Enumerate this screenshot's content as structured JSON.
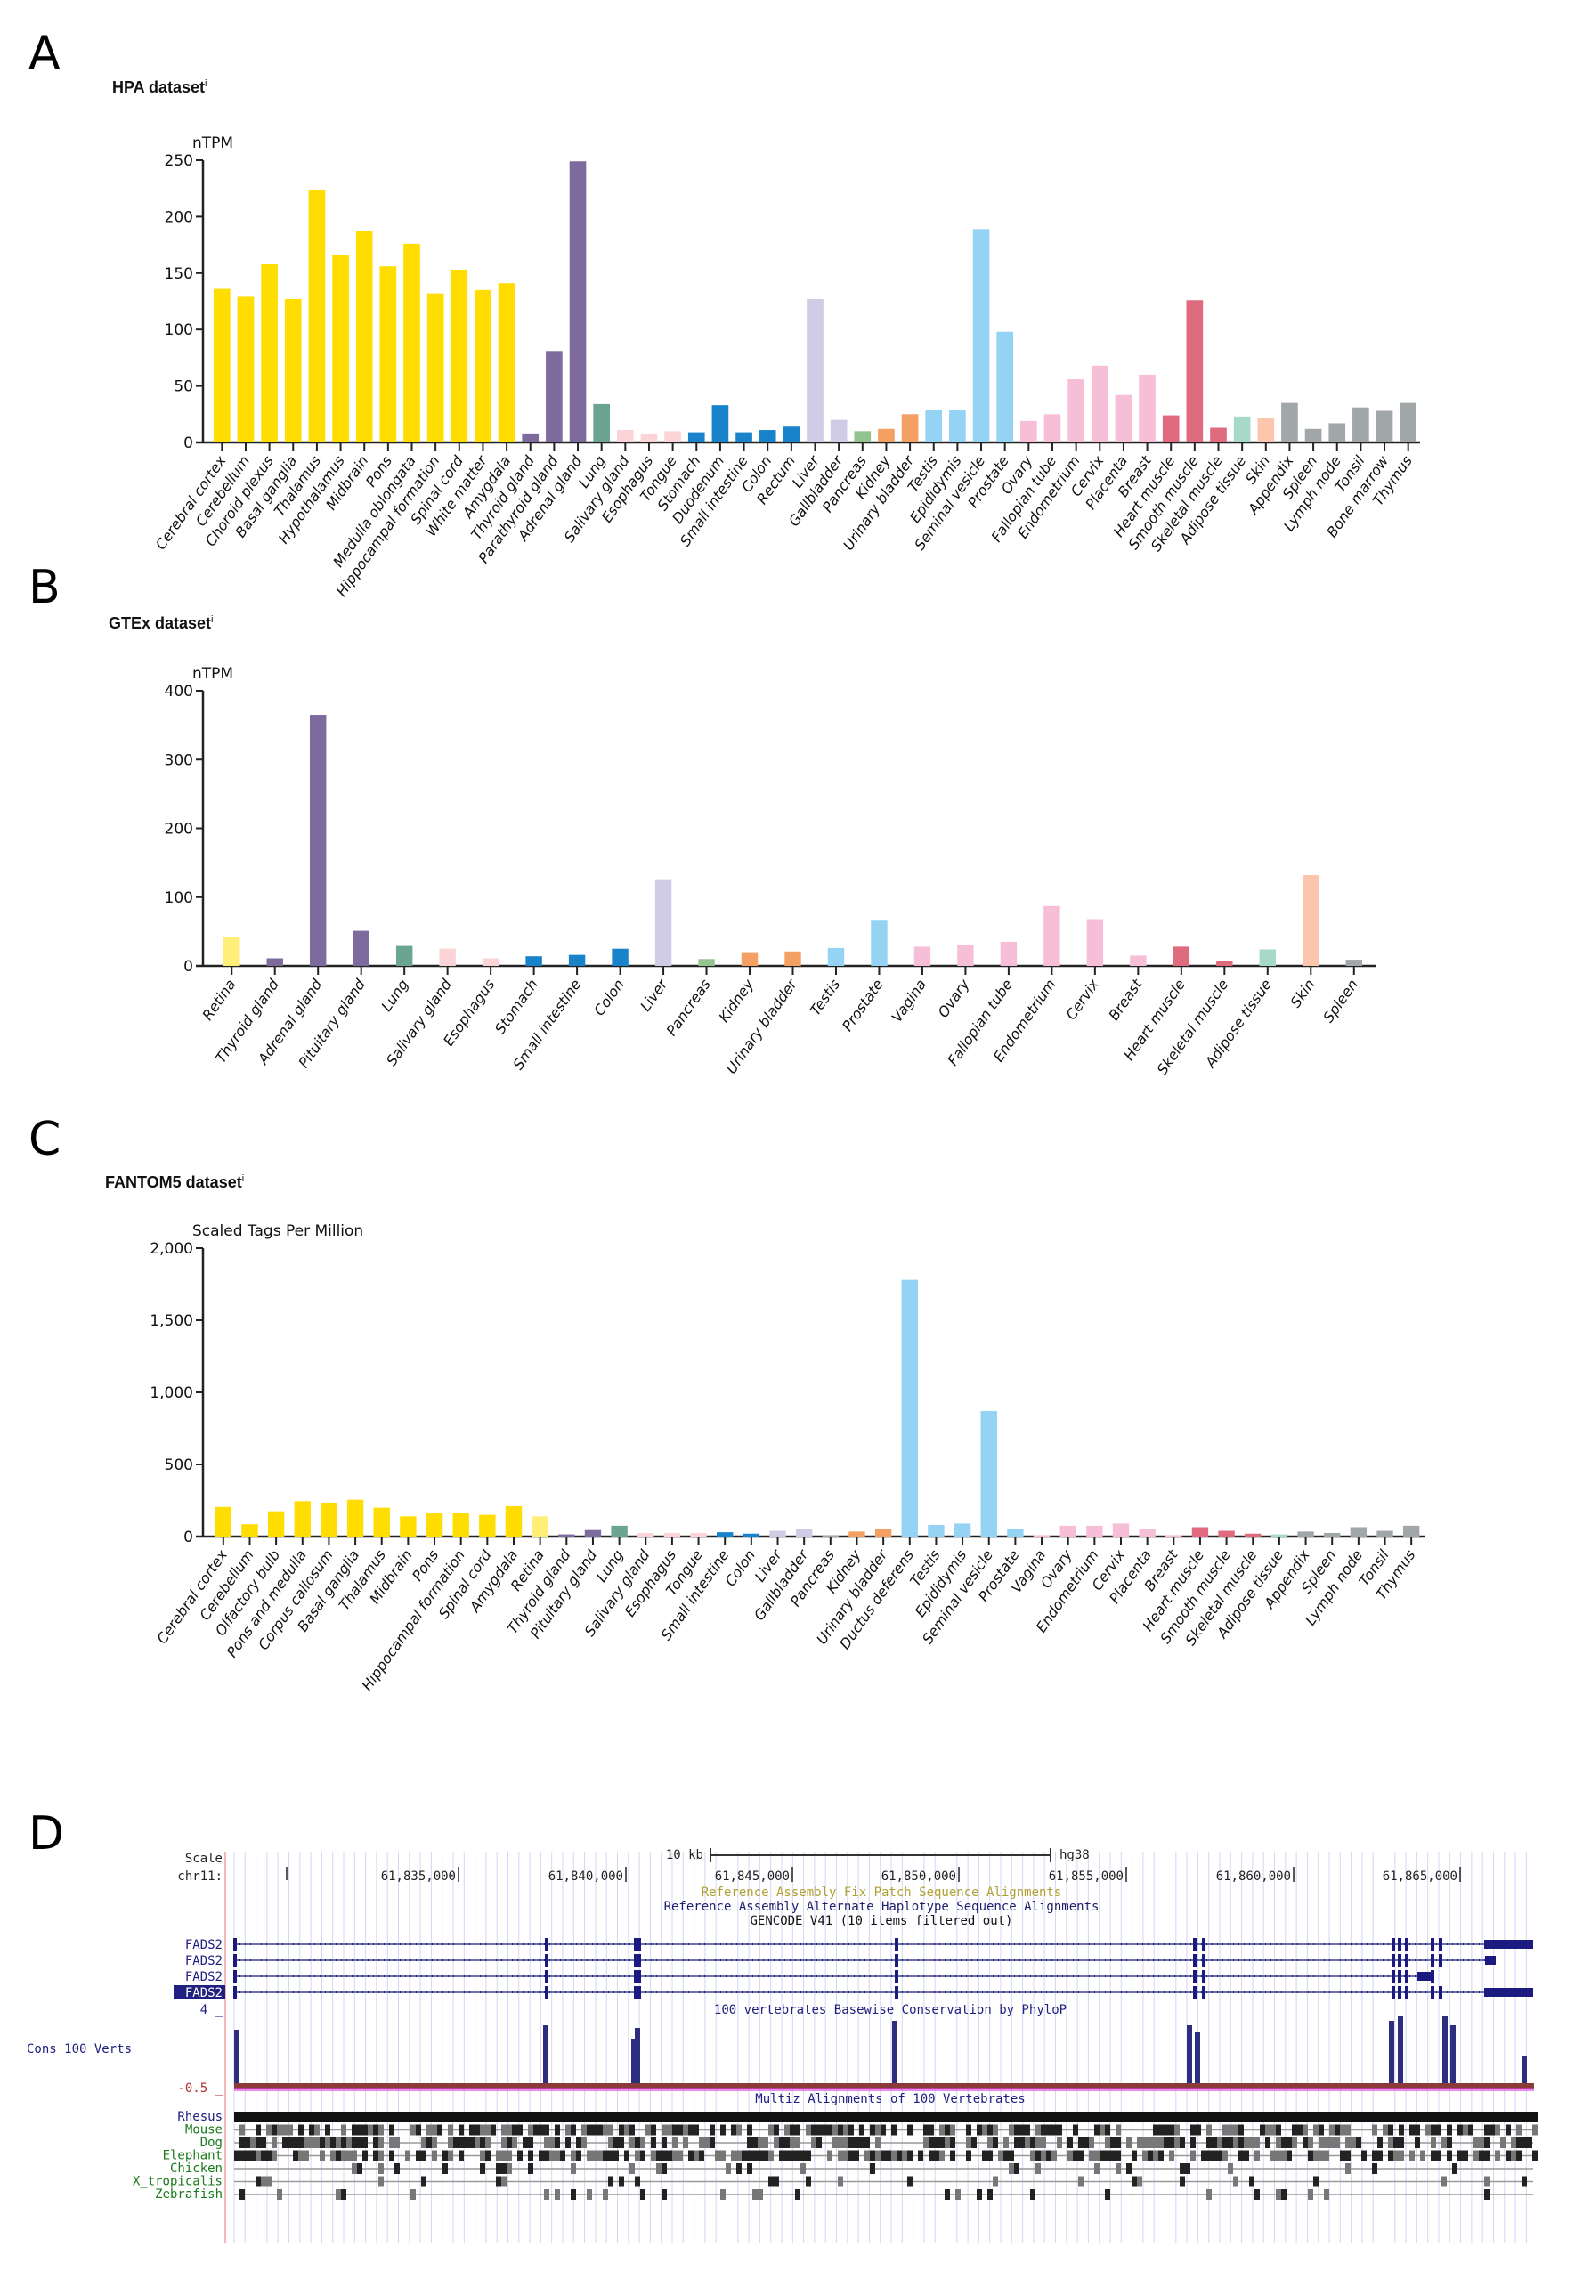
{
  "panels": {
    "A": "A",
    "B": "B",
    "C": "C",
    "D": "D"
  },
  "colors": {
    "brain": "#FFDD00",
    "retina": "#FFEE77",
    "endocrine": "#7E6B9E",
    "lung": "#6BA592",
    "gi_proximal": "#FAD4D6",
    "gi": "#1883CB",
    "liver": "#D0CCE6",
    "pancreas": "#93C490",
    "kidney": "#F5A063",
    "male": "#95D3F4",
    "female": "#F6BED7",
    "muscle": "#E06B7E",
    "adipose": "#A7D9C8",
    "skin": "#FCC6AE",
    "lymphoid": "#A1A7A8"
  },
  "chart_data": [
    {
      "type": "bar",
      "title": "HPA dataset",
      "title_suffix": "i",
      "xlabel": "",
      "ylabel": "nTPM",
      "ylim": [
        0,
        250
      ],
      "yticks": [
        0,
        50,
        100,
        150,
        200,
        250
      ],
      "ytick_labels": [
        "0",
        "50",
        "100",
        "150",
        "200",
        "250"
      ],
      "grid": false,
      "categories": [
        "Cerebral cortex",
        "Cerebellum",
        "Choroid plexus",
        "Basal ganglia",
        "Thalamus",
        "Hypothalamus",
        "Midbrain",
        "Pons",
        "Medulla oblongata",
        "Hippocampal formation",
        "Spinal cord",
        "White matter",
        "Amygdala",
        "Thyroid gland",
        "Parathyroid gland",
        "Adrenal gland",
        "Lung",
        "Salivary gland",
        "Esophagus",
        "Tongue",
        "Stomach",
        "Duodenum",
        "Small intestine",
        "Colon",
        "Rectum",
        "Liver",
        "Gallbladder",
        "Pancreas",
        "Kidney",
        "Urinary bladder",
        "Testis",
        "Epididymis",
        "Seminal vesicle",
        "Prostate",
        "Ovary",
        "Fallopian tube",
        "Endometrium",
        "Cervix",
        "Placenta",
        "Breast",
        "Heart muscle",
        "Smooth muscle",
        "Skeletal muscle",
        "Adipose tissue",
        "Skin",
        "Appendix",
        "Spleen",
        "Lymph node",
        "Tonsil",
        "Bone marrow",
        "Thymus"
      ],
      "values": [
        136,
        129,
        158,
        127,
        224,
        166,
        187,
        156,
        176,
        132,
        153,
        135,
        141,
        8,
        81,
        249,
        34,
        11,
        8,
        10,
        9,
        33,
        9,
        11,
        14,
        127,
        20,
        10,
        12,
        25,
        29,
        29,
        189,
        98,
        19,
        25,
        56,
        68,
        42,
        60,
        24,
        126,
        13,
        23,
        22,
        35,
        12,
        17,
        31,
        28,
        35
      ],
      "groups": [
        "brain",
        "brain",
        "brain",
        "brain",
        "brain",
        "brain",
        "brain",
        "brain",
        "brain",
        "brain",
        "brain",
        "brain",
        "brain",
        "endocrine",
        "endocrine",
        "endocrine",
        "lung",
        "gi_proximal",
        "gi_proximal",
        "gi_proximal",
        "gi",
        "gi",
        "gi",
        "gi",
        "gi",
        "liver",
        "liver",
        "pancreas",
        "kidney",
        "kidney",
        "male",
        "male",
        "male",
        "male",
        "female",
        "female",
        "female",
        "female",
        "female",
        "female",
        "muscle",
        "muscle",
        "muscle",
        "adipose",
        "skin",
        "lymphoid",
        "lymphoid",
        "lymphoid",
        "lymphoid",
        "lymphoid",
        "lymphoid"
      ]
    },
    {
      "type": "bar",
      "title": "GTEx dataset",
      "title_suffix": "i",
      "xlabel": "",
      "ylabel": "nTPM",
      "ylim": [
        0,
        400
      ],
      "yticks": [
        0,
        100,
        200,
        300,
        400
      ],
      "ytick_labels": [
        "0",
        "100",
        "200",
        "300",
        "400"
      ],
      "grid": false,
      "categories": [
        "Retina",
        "Thyroid gland",
        "Adrenal gland",
        "Pituitary gland",
        "Lung",
        "Salivary gland",
        "Esophagus",
        "Stomach",
        "Small intestine",
        "Colon",
        "Liver",
        "Pancreas",
        "Kidney",
        "Urinary bladder",
        "Testis",
        "Prostate",
        "Vagina",
        "Ovary",
        "Fallopian tube",
        "Endometrium",
        "Cervix",
        "Breast",
        "Heart muscle",
        "Skeletal muscle",
        "Adipose tissue",
        "Skin",
        "Spleen"
      ],
      "values": [
        42,
        11,
        365,
        51,
        29,
        25,
        11,
        14,
        16,
        25,
        126,
        10,
        20,
        21,
        26,
        67,
        28,
        30,
        35,
        87,
        68,
        15,
        28,
        7,
        24,
        132,
        9
      ],
      "groups": [
        "retina",
        "endocrine",
        "endocrine",
        "endocrine",
        "lung",
        "gi_proximal",
        "gi_proximal",
        "gi",
        "gi",
        "gi",
        "liver",
        "pancreas",
        "kidney",
        "kidney",
        "male",
        "male",
        "female",
        "female",
        "female",
        "female",
        "female",
        "female",
        "muscle",
        "muscle",
        "adipose",
        "skin",
        "lymphoid"
      ]
    },
    {
      "type": "bar",
      "title": "FANTOM5 dataset",
      "title_suffix": "i",
      "xlabel": "",
      "ylabel": "Scaled Tags Per Million",
      "ylim": [
        0,
        2000
      ],
      "yticks": [
        0,
        500,
        1000,
        1500,
        2000
      ],
      "ytick_labels": [
        "0",
        "500",
        "1,000",
        "1,500",
        "2,000"
      ],
      "grid": false,
      "categories": [
        "Cerebral cortex",
        "Cerebellum",
        "Olfactory bulb",
        "Pons and medulla",
        "Corpus callosum",
        "Basal ganglia",
        "Thalamus",
        "Midbrain",
        "Pons",
        "Hippocampal formation",
        "Spinal cord",
        "Amygdala",
        "Retina",
        "Thyroid gland",
        "Pituitary gland",
        "Lung",
        "Salivary gland",
        "Esophagus",
        "Tongue",
        "Small intestine",
        "Colon",
        "Liver",
        "Gallbladder",
        "Pancreas",
        "Kidney",
        "Urinary bladder",
        "Ductus deferens",
        "Testis",
        "Epididymis",
        "Seminal vesicle",
        "Prostate",
        "Vagina",
        "Ovary",
        "Endometrium",
        "Cervix",
        "Placenta",
        "Breast",
        "Heart muscle",
        "Smooth muscle",
        "Skeletal muscle",
        "Adipose tissue",
        "Appendix",
        "Spleen",
        "Lymph node",
        "Tonsil",
        "Thymus"
      ],
      "values": [
        205,
        85,
        175,
        245,
        235,
        255,
        200,
        140,
        165,
        165,
        150,
        210,
        140,
        15,
        45,
        75,
        25,
        25,
        25,
        30,
        20,
        40,
        50,
        8,
        35,
        50,
        1780,
        80,
        90,
        870,
        50,
        10,
        75,
        75,
        90,
        55,
        10,
        65,
        40,
        20,
        15,
        35,
        25,
        65,
        40,
        75
      ],
      "groups": [
        "brain",
        "brain",
        "brain",
        "brain",
        "brain",
        "brain",
        "brain",
        "brain",
        "brain",
        "brain",
        "brain",
        "brain",
        "retina",
        "endocrine",
        "endocrine",
        "lung",
        "gi_proximal",
        "gi_proximal",
        "gi_proximal",
        "gi",
        "gi",
        "liver",
        "liver",
        "lymphoid",
        "kidney",
        "kidney",
        "male",
        "male",
        "male",
        "male",
        "male",
        "female",
        "female",
        "female",
        "female",
        "female",
        "female",
        "muscle",
        "muscle",
        "muscle",
        "adipose",
        "lymphoid",
        "lymphoid",
        "lymphoid",
        "lymphoid",
        "lymphoid"
      ]
    }
  ],
  "genome_browser": {
    "scale_label": "Scale",
    "scale_value": "10 kb",
    "assembly": "hg38",
    "chrom_label": "chr11:",
    "positions": [
      "61,835,000",
      "61,840,000",
      "61,845,000",
      "61,850,000",
      "61,855,000",
      "61,860,000",
      "61,865,000"
    ],
    "track_fix_patch": "Reference Assembly Fix Patch Sequence Alignments",
    "track_alt_haplo": "Reference Assembly Alternate Haplotype Sequence Alignments",
    "track_gencode": "GENCODE V41 (10 items filtered out)",
    "genes": [
      "FADS2",
      "FADS2",
      "FADS2",
      "FADS2"
    ],
    "cons_track_title": "100 vertebrates Basewise Conservation by PhyloP",
    "cons_label": "Cons 100 Verts",
    "cons_max": "4",
    "cons_min": "-0.5",
    "multiz_title": "Multiz Alignments of 100 Vertebrates",
    "species": [
      "Rhesus",
      "Mouse",
      "Dog",
      "Elephant",
      "Chicken",
      "X_tropicalis",
      "Zebrafish"
    ]
  }
}
